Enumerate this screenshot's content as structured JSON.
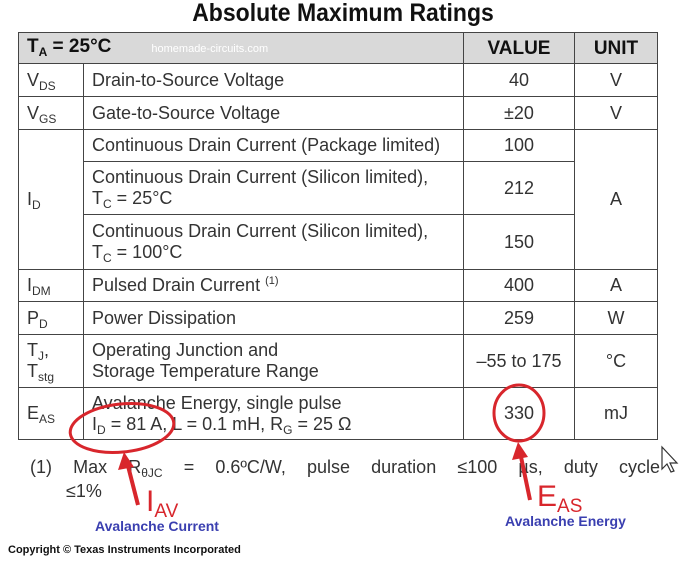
{
  "title": "Absolute Maximum Ratings",
  "watermark": "homemade-circuits.com",
  "header": {
    "cond_main": "T",
    "cond_sub": "A",
    "cond_rest": " = 25°C",
    "value": "VALUE",
    "unit": "UNIT"
  },
  "rows": [
    {
      "sym": "V",
      "sub": "DS",
      "param": "Drain-to-Source Voltage",
      "value": "40",
      "unit": "V"
    },
    {
      "sym": "V",
      "sub": "GS",
      "param": "Gate-to-Source Voltage",
      "value": "±20",
      "unit": "V"
    },
    {
      "sym": "I",
      "sub": "D",
      "unit": "A",
      "subrows": [
        {
          "param": "Continuous Drain Current (Package limited)",
          "value": "100"
        },
        {
          "param": "Continuous Drain Current (Silicon limited),",
          "cond": "T",
          "cond_sub": "C",
          "cond_rest": " = 25°C",
          "value": "212"
        },
        {
          "param": "Continuous Drain Current (Silicon limited),",
          "cond": "T",
          "cond_sub": "C",
          "cond_rest": " = 100°C",
          "value": "150"
        }
      ]
    },
    {
      "sym": "I",
      "sub": "DM",
      "param": "Pulsed Drain Current",
      "note": "(1)",
      "value": "400",
      "unit": "A"
    },
    {
      "sym": "P",
      "sub": "D",
      "param": "Power Dissipation",
      "value": "259",
      "unit": "W"
    },
    {
      "sym": "T",
      "sub": "J",
      "sym_rest": ",",
      "sym2": "T",
      "sub2": "stg",
      "param": "Operating Junction and",
      "param2": "Storage Temperature Range",
      "value": "–55 to 175",
      "unit": "°C"
    },
    {
      "sym": "E",
      "sub": "AS",
      "param": "Avalanche Energy, single pulse",
      "p2a": "I",
      "p2a_sub": "D",
      "p2b": " = 81 A, L = 0.1 mH, R",
      "p2b_sub": "G",
      "p2c": " = 25 Ω",
      "value": "330",
      "unit": "mJ"
    }
  ],
  "footnote": {
    "l1": [
      "(1)",
      "Max",
      "R",
      "θJC",
      "=",
      "0.6ºC/W,",
      "pulse",
      "duration",
      "≤100",
      "µs,",
      "duty",
      "cycle"
    ],
    "l2": "≤1%"
  },
  "annotations": {
    "iav_main": "I",
    "iav_sub": "AV",
    "iav_label": "Avalanche Current",
    "eas_main": "E",
    "eas_sub": "AS",
    "eas_label": "Avalanche Energy",
    "color": "#d8262c",
    "label_color": "#3a3fb0"
  },
  "copyright": "Copyright © Texas Instruments Incorporated"
}
